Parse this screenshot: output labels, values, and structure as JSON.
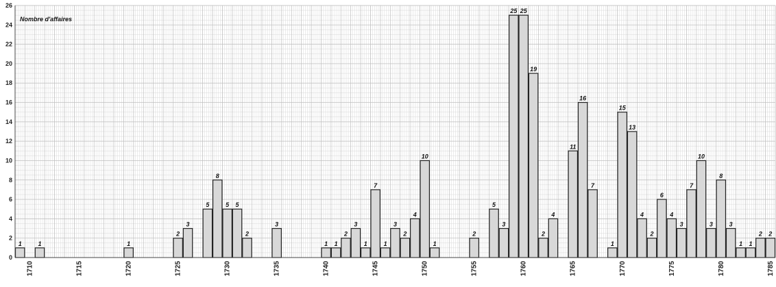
{
  "chart_data": {
    "type": "bar",
    "title": "Nombre d'affaires",
    "xlabel": "",
    "ylabel": "",
    "ylim": [
      0,
      26
    ],
    "y_ticks": [
      0,
      2,
      4,
      6,
      8,
      10,
      12,
      14,
      16,
      18,
      20,
      22,
      24,
      26
    ],
    "x_ticks": [
      1710,
      1715,
      1720,
      1725,
      1730,
      1735,
      1740,
      1745,
      1750,
      1755,
      1760,
      1765,
      1770,
      1775,
      1780,
      1785
    ],
    "x_range": [
      1709,
      1785
    ],
    "grid": true,
    "bars": [
      {
        "year": 1709,
        "value": 1
      },
      {
        "year": 1711,
        "value": 1
      },
      {
        "year": 1720,
        "value": 1
      },
      {
        "year": 1725,
        "value": 2
      },
      {
        "year": 1726,
        "value": 3
      },
      {
        "year": 1728,
        "value": 5
      },
      {
        "year": 1729,
        "value": 8
      },
      {
        "year": 1730,
        "value": 5
      },
      {
        "year": 1731,
        "value": 5
      },
      {
        "year": 1732,
        "value": 2
      },
      {
        "year": 1735,
        "value": 3
      },
      {
        "year": 1740,
        "value": 1
      },
      {
        "year": 1741,
        "value": 1
      },
      {
        "year": 1742,
        "value": 2
      },
      {
        "year": 1743,
        "value": 3
      },
      {
        "year": 1744,
        "value": 1
      },
      {
        "year": 1745,
        "value": 7
      },
      {
        "year": 1746,
        "value": 1
      },
      {
        "year": 1747,
        "value": 3
      },
      {
        "year": 1748,
        "value": 2
      },
      {
        "year": 1749,
        "value": 4
      },
      {
        "year": 1750,
        "value": 10
      },
      {
        "year": 1751,
        "value": 1
      },
      {
        "year": 1755,
        "value": 2
      },
      {
        "year": 1757,
        "value": 5
      },
      {
        "year": 1758,
        "value": 3
      },
      {
        "year": 1759,
        "value": 25
      },
      {
        "year": 1760,
        "value": 25
      },
      {
        "year": 1761,
        "value": 19
      },
      {
        "year": 1762,
        "value": 2
      },
      {
        "year": 1763,
        "value": 4
      },
      {
        "year": 1765,
        "value": 11
      },
      {
        "year": 1766,
        "value": 16
      },
      {
        "year": 1767,
        "value": 7
      },
      {
        "year": 1769,
        "value": 1
      },
      {
        "year": 1770,
        "value": 15
      },
      {
        "year": 1771,
        "value": 13
      },
      {
        "year": 1772,
        "value": 4
      },
      {
        "year": 1773,
        "value": 2
      },
      {
        "year": 1774,
        "value": 6
      },
      {
        "year": 1775,
        "value": 4
      },
      {
        "year": 1776,
        "value": 3
      },
      {
        "year": 1777,
        "value": 7
      },
      {
        "year": 1778,
        "value": 10
      },
      {
        "year": 1779,
        "value": 3
      },
      {
        "year": 1780,
        "value": 8
      },
      {
        "year": 1781,
        "value": 3
      },
      {
        "year": 1782,
        "value": 1
      },
      {
        "year": 1783,
        "value": 1
      },
      {
        "year": 1784,
        "value": 2
      },
      {
        "year": 1785,
        "value": 2
      }
    ],
    "colors": {
      "bar_fill": "#d8d8d8",
      "bar_stroke": "#222222",
      "grid_minor": "#d9d9d9",
      "grid_major": "#bdbdbd",
      "axis": "#444444"
    }
  }
}
